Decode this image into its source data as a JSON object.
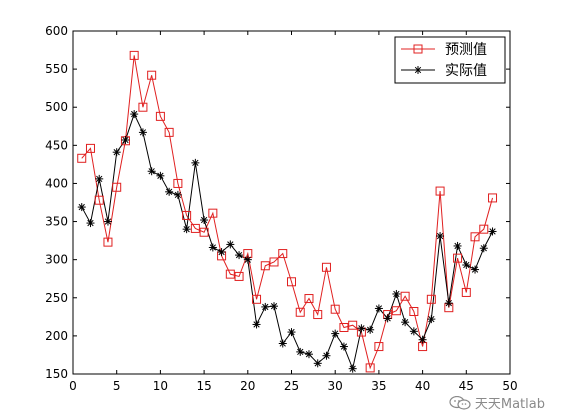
{
  "chart_data": {
    "type": "line",
    "xlim": [
      0,
      50
    ],
    "ylim": [
      150,
      600
    ],
    "x_ticks": [
      "0",
      "5",
      "10",
      "15",
      "20",
      "25",
      "30",
      "35",
      "40",
      "45",
      "50"
    ],
    "y_ticks": [
      "150",
      "200",
      "250",
      "300",
      "350",
      "400",
      "450",
      "500",
      "550",
      "600"
    ],
    "x": [
      1,
      2,
      3,
      4,
      5,
      6,
      7,
      8,
      9,
      10,
      11,
      12,
      13,
      14,
      15,
      16,
      17,
      18,
      19,
      20,
      21,
      22,
      23,
      24,
      25,
      26,
      27,
      28,
      29,
      30,
      31,
      32,
      33,
      34,
      35,
      36,
      37,
      38,
      39,
      40,
      41,
      42,
      43,
      44,
      45,
      46,
      47,
      48
    ],
    "series": [
      {
        "name": "预测值",
        "color": "#e02020",
        "marker": "square",
        "values": [
          433,
          446,
          378,
          323,
          395,
          456,
          568,
          500,
          542,
          488,
          467,
          400,
          358,
          341,
          336,
          361,
          305,
          281,
          278,
          308,
          248,
          292,
          297,
          308,
          271,
          231,
          249,
          228,
          290,
          235,
          211,
          214,
          205,
          158,
          186,
          228,
          233,
          252,
          232,
          186,
          248,
          390,
          237,
          302,
          257,
          330,
          340,
          381
        ]
      },
      {
        "name": "实际值",
        "color": "#000000",
        "marker": "star",
        "values": [
          369,
          348,
          406,
          350,
          441,
          457,
          491,
          467,
          416,
          410,
          389,
          385,
          340,
          427,
          352,
          316,
          310,
          320,
          306,
          300,
          215,
          238,
          239,
          190,
          205,
          179,
          176,
          164,
          174,
          203,
          186,
          157,
          210,
          208,
          236,
          223,
          255,
          218,
          206,
          195,
          222,
          331,
          243,
          318,
          293,
          287,
          315,
          337
        ]
      }
    ],
    "legend_location": "top-right",
    "grid": false
  },
  "watermark": {
    "text": "天天Matlab",
    "icon": "wechat-icon"
  }
}
